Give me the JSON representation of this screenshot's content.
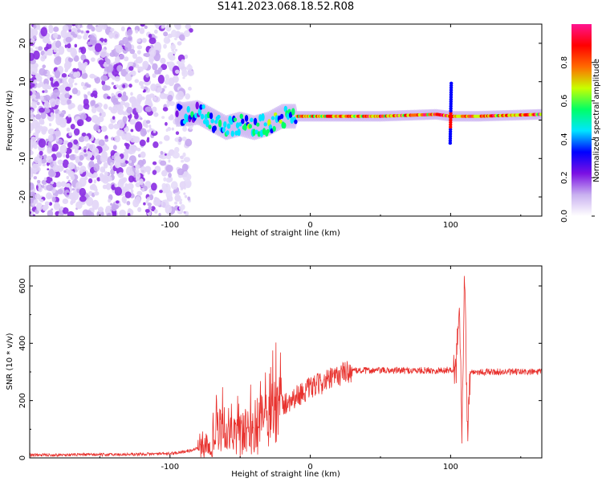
{
  "title": "S141.2023.068.18.52.R08",
  "colors": {
    "snr_line": "#e8322e",
    "frame": "#000000"
  },
  "chart_data": [
    {
      "type": "heatmap",
      "name": "spectrogram",
      "xlabel": "Height of straight line (km)",
      "ylabel": "Frequency (Hz)",
      "xlim": [
        -200,
        165
      ],
      "ylim": [
        -25,
        25
      ],
      "xticks": [
        -100,
        0,
        100
      ],
      "yticks": [
        20,
        10,
        0,
        -10,
        -20
      ],
      "colorbar": {
        "label": "Normalized spectral amplitude",
        "range": [
          0,
          1
        ],
        "ticks": [
          "0.0",
          "0.2",
          "0.4",
          "0.6",
          "0.8"
        ],
        "stops": [
          "#ffffff",
          "#c9b1f0",
          "#7b10e3",
          "#0000ff",
          "#00e5ff",
          "#00ff66",
          "#c8ff00",
          "#ff6a00",
          "#ff0000",
          "#ff1490"
        ]
      },
      "signal_band_hz": [
        [
          -90,
          1.5
        ],
        [
          -80,
          2
        ],
        [
          -70,
          0
        ],
        [
          -60,
          -2
        ],
        [
          -50,
          -1
        ],
        [
          -40,
          -2
        ],
        [
          -30,
          -1
        ],
        [
          -20,
          1
        ],
        [
          -10,
          1
        ],
        [
          0,
          1
        ],
        [
          50,
          1
        ],
        [
          90,
          1.5
        ],
        [
          100,
          1
        ],
        [
          120,
          1
        ],
        [
          165,
          1.5
        ]
      ]
    },
    {
      "type": "line",
      "name": "snr",
      "xlabel": "Height of straight line (km)",
      "ylabel": "SNR (10 * v/v)",
      "xlim": [
        -200,
        165
      ],
      "ylim": [
        0,
        670
      ],
      "xticks": [
        -100,
        0,
        100
      ],
      "yticks": [
        0,
        200,
        400,
        600
      ],
      "trend": {
        "x": [
          -200,
          -130,
          -100,
          -85,
          -70,
          -62,
          -55,
          -45,
          -35,
          -25,
          -15,
          -5,
          5,
          15,
          25,
          35,
          50,
          80,
          95,
          104,
          106,
          108,
          110,
          112,
          114,
          125,
          165
        ],
        "y": [
          10,
          12,
          15,
          25,
          60,
          95,
          60,
          85,
          120,
          165,
          200,
          230,
          255,
          275,
          300,
          305,
          305,
          305,
          305,
          310,
          560,
          110,
          650,
          90,
          300,
          300,
          300
        ]
      }
    }
  ]
}
